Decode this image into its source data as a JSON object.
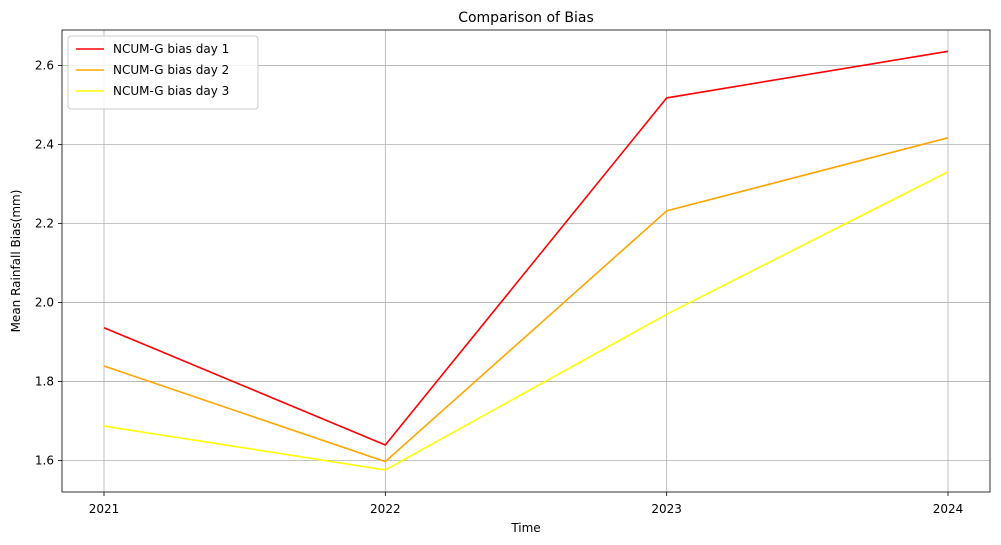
{
  "chart_data": {
    "type": "line",
    "title": "Comparison of Bias",
    "xlabel": "Time",
    "ylabel": "Mean Rainfall Bias(mm)",
    "categories": [
      "2021",
      "2022",
      "2023",
      "2024"
    ],
    "ylim": [
      1.52,
      2.69
    ],
    "yticks": [
      1.6,
      1.8,
      2.0,
      2.2,
      2.4,
      2.6
    ],
    "ytick_labels": [
      "1.6",
      "1.8",
      "2.0",
      "2.2",
      "2.4",
      "2.6"
    ],
    "grid": true,
    "legend_position": "top-left",
    "series": [
      {
        "name": "NCUM-G bias day 1",
        "color": "#ff0000",
        "values": [
          1.936,
          1.639,
          2.518,
          2.636
        ]
      },
      {
        "name": "NCUM-G bias day 2",
        "color": "#ffa500",
        "values": [
          1.839,
          1.597,
          2.232,
          2.417
        ]
      },
      {
        "name": "NCUM-G bias day 3",
        "color": "#ffff00",
        "values": [
          1.687,
          1.576,
          1.97,
          2.331
        ]
      }
    ]
  }
}
